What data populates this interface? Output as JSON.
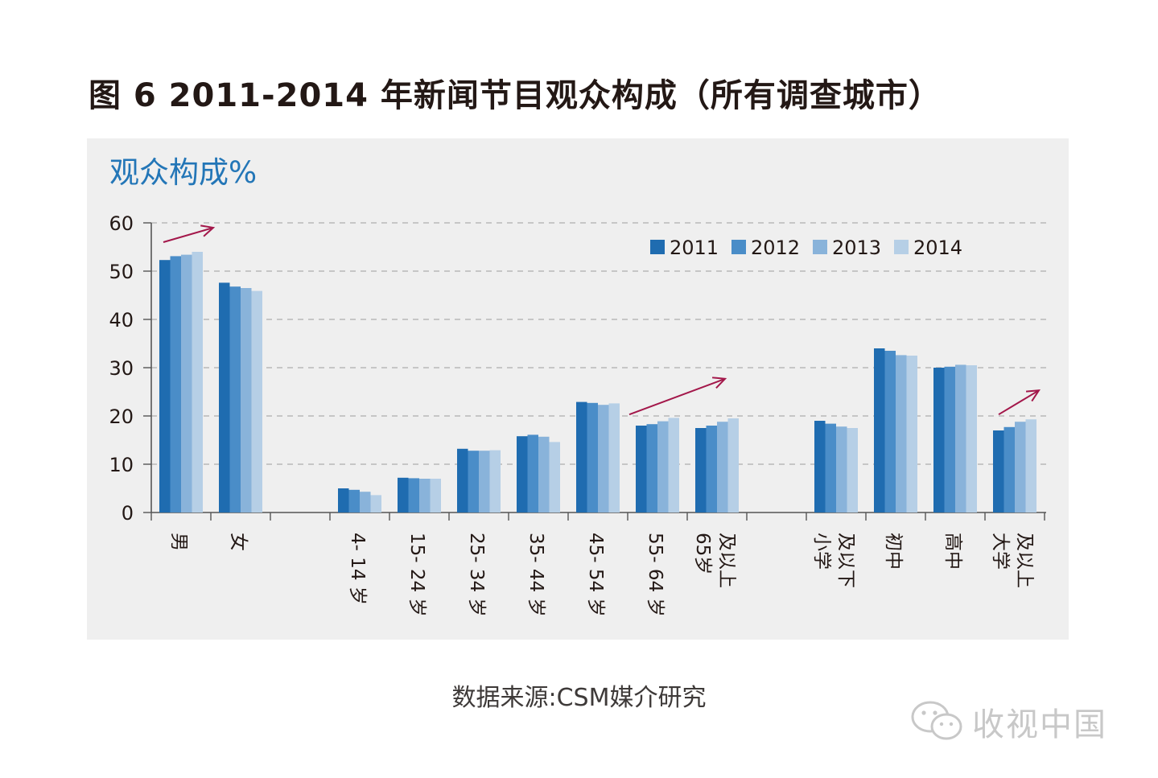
{
  "figure_title": "图 6  2011-2014 年新闻节目观众构成（所有调查城市）",
  "source_note": "数据来源:CSM媒介研究",
  "watermark_text": "收视中国",
  "watermark_icon": "wechat-icon",
  "chart_data": {
    "type": "bar",
    "title": "观众构成%",
    "xlabel": "",
    "ylabel": "",
    "ylim": [
      0,
      60
    ],
    "yticks": [
      "0",
      "10",
      "20",
      "30",
      "40",
      "50",
      "60"
    ],
    "grid": "dashed-horizontal",
    "legend_position": "top-right",
    "categories": [
      [
        "男"
      ],
      [
        "女"
      ],
      [
        ""
      ],
      [
        "4- 14 岁"
      ],
      [
        "15- 24 岁"
      ],
      [
        "25- 34 岁"
      ],
      [
        "35- 44 岁"
      ],
      [
        "45- 54 岁"
      ],
      [
        "55- 64 岁"
      ],
      [
        "65岁",
        "及以上"
      ],
      [
        ""
      ],
      [
        "小学",
        "及以下"
      ],
      [
        "初中"
      ],
      [
        "高中"
      ],
      [
        "大学",
        "及以上"
      ]
    ],
    "series": [
      {
        "name": "2011",
        "color": "#1f6cb0",
        "values": [
          52.3,
          47.6,
          null,
          5.0,
          7.2,
          13.2,
          15.8,
          22.9,
          18.0,
          17.5,
          null,
          19.0,
          34.0,
          30.0,
          17.0
        ]
      },
      {
        "name": "2012",
        "color": "#4a8dc8",
        "values": [
          53.1,
          46.8,
          null,
          4.7,
          7.1,
          12.8,
          16.1,
          22.7,
          18.3,
          18.0,
          null,
          18.4,
          33.5,
          30.2,
          17.7
        ]
      },
      {
        "name": "2013",
        "color": "#89b3da",
        "values": [
          53.4,
          46.5,
          null,
          4.3,
          7.0,
          12.8,
          15.7,
          22.3,
          18.9,
          18.8,
          null,
          17.8,
          32.6,
          30.6,
          18.8
        ]
      },
      {
        "name": "2014",
        "color": "#b6cfe6",
        "values": [
          54.0,
          45.9,
          null,
          3.6,
          7.0,
          12.9,
          14.6,
          22.6,
          19.6,
          19.5,
          null,
          17.5,
          32.5,
          30.5,
          19.3
        ]
      }
    ],
    "annotations": [
      {
        "type": "trend-arrow",
        "color": "#a3174a",
        "from": {
          "x": "男",
          "y": 56
        },
        "to": {
          "x": "男",
          "y": 59
        }
      },
      {
        "type": "trend-arrow",
        "color": "#a3174a",
        "from": {
          "x": "55- 64 岁",
          "y": 20.3
        },
        "to": {
          "x": "65岁 及以上",
          "y": 27.7
        }
      },
      {
        "type": "trend-arrow",
        "color": "#a3174a",
        "from": {
          "x": "大学 及以上",
          "y": 20.3
        },
        "to": {
          "x": "大学 及以上",
          "y": 25.3
        }
      }
    ]
  }
}
